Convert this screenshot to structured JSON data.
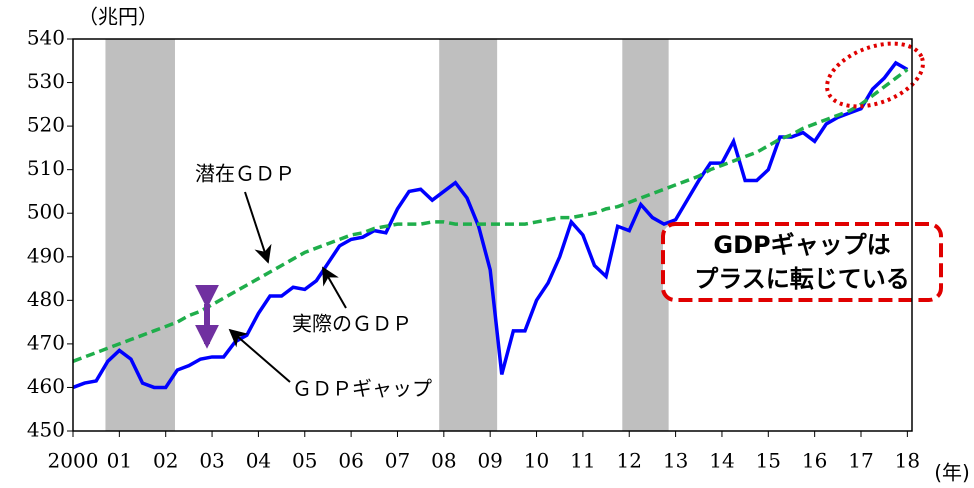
{
  "chart_data": {
    "type": "line",
    "y_label": "（兆円）",
    "x_unit": "(年)",
    "x": [
      2000,
      2000.25,
      2000.5,
      2000.75,
      2001,
      2001.25,
      2001.5,
      2001.75,
      2002,
      2002.25,
      2002.5,
      2002.75,
      2003,
      2003.25,
      2003.5,
      2003.75,
      2004,
      2004.25,
      2004.5,
      2004.75,
      2005,
      2005.25,
      2005.5,
      2005.75,
      2006,
      2006.25,
      2006.5,
      2006.75,
      2007,
      2007.25,
      2007.5,
      2007.75,
      2008,
      2008.25,
      2008.5,
      2008.75,
      2009,
      2009.25,
      2009.5,
      2009.75,
      2010,
      2010.25,
      2010.5,
      2010.75,
      2011,
      2011.25,
      2011.5,
      2011.75,
      2012,
      2012.25,
      2012.5,
      2012.75,
      2013,
      2013.25,
      2013.5,
      2013.75,
      2014,
      2014.25,
      2014.5,
      2014.75,
      2015,
      2015.25,
      2015.5,
      2015.75,
      2016,
      2016.25,
      2016.5,
      2016.75,
      2017,
      2017.25,
      2017.5,
      2017.75,
      2018
    ],
    "series": [
      {
        "name": "実際のＧＤＰ",
        "color": "#0000ff",
        "dashed": false,
        "values": [
          460,
          461,
          461.5,
          466,
          468.5,
          466.5,
          461,
          460,
          460,
          464,
          465,
          466.5,
          467,
          467,
          470.5,
          472,
          477,
          481,
          481,
          483,
          482.5,
          484.5,
          488.5,
          492.5,
          494,
          494.5,
          496,
          495.5,
          501,
          505,
          505.5,
          503,
          505,
          507,
          503.5,
          497,
          487,
          463,
          473,
          473,
          480,
          484,
          490,
          498,
          495,
          488,
          485.5,
          497,
          496,
          502,
          499,
          497.5,
          498.5,
          503,
          507.5,
          511.5,
          511.5,
          516.5,
          507.5,
          507.5,
          510,
          517.5,
          517.5,
          518.5,
          516.5,
          520.5,
          522,
          523,
          524,
          528.5,
          531,
          534.5,
          533
        ]
      },
      {
        "name": "潜在ＧＤＰ",
        "color": "#1fae4b",
        "dashed": true,
        "values": [
          466,
          467,
          468,
          469,
          470,
          471,
          472,
          473,
          474,
          475,
          476.5,
          477.5,
          479,
          480.5,
          482,
          483.5,
          485,
          486.5,
          488,
          489.5,
          491,
          492,
          493,
          494,
          495,
          495.5,
          496.5,
          497,
          497.5,
          497.5,
          497.5,
          498,
          498,
          497.5,
          497.5,
          497.5,
          497.5,
          497.5,
          497.5,
          497.5,
          498,
          498.5,
          499,
          499,
          499.5,
          500,
          501,
          501.5,
          502.5,
          503.5,
          504.5,
          505.5,
          506.5,
          507.5,
          508.5,
          510,
          511,
          512,
          513,
          514,
          515.5,
          517,
          518,
          519.5,
          520.5,
          521.5,
          522.5,
          523.5,
          525,
          527,
          529,
          531,
          533
        ]
      }
    ],
    "shaded_periods": [
      [
        2000.7,
        2002.2
      ],
      [
        2007.9,
        2009.15
      ],
      [
        2011.85,
        2012.85
      ]
    ],
    "xlim": [
      2000,
      2018.1
    ],
    "xticks": [
      {
        "value": 2000,
        "label": "2000"
      },
      {
        "value": 2001,
        "label": "01"
      },
      {
        "value": 2002,
        "label": "02"
      },
      {
        "value": 2003,
        "label": "03"
      },
      {
        "value": 2004,
        "label": "04"
      },
      {
        "value": 2005,
        "label": "05"
      },
      {
        "value": 2006,
        "label": "06"
      },
      {
        "value": 2007,
        "label": "07"
      },
      {
        "value": 2008,
        "label": "08"
      },
      {
        "value": 2009,
        "label": "09"
      },
      2010,
      2011,
      2012,
      2013,
      2014,
      2015,
      2016,
      2017,
      2018
    ],
    "xtick_labels_short": [],
    "ylim": [
      450,
      540
    ],
    "yticks": [
      450,
      460,
      470,
      480,
      490,
      500,
      510,
      520,
      530,
      540
    ],
    "annotations": [
      "潜在ＧＤＰ",
      "実際のＧＤＰ",
      "ＧＤＰギャップ"
    ],
    "callout": [
      "GDPギャップは",
      "プラスに転じている"
    ]
  }
}
